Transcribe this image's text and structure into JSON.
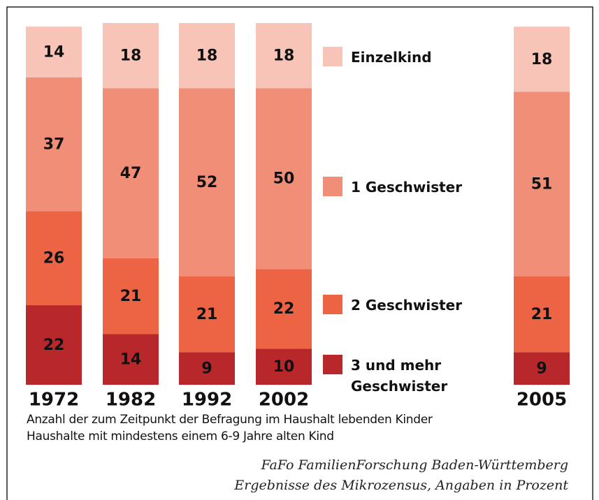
{
  "chart_data": {
    "type": "stacked_bar",
    "categories": [
      "1972",
      "1982",
      "1992",
      "2002",
      "2005"
    ],
    "series": [
      {
        "name": "Einzelkind",
        "color": "#f9c4b8",
        "values": [
          14,
          18,
          18,
          18,
          18
        ]
      },
      {
        "name": "1 Geschwister",
        "color": "#f08e78",
        "values": [
          37,
          47,
          52,
          50,
          51
        ]
      },
      {
        "name": "2 Geschwister",
        "color": "#ed6445",
        "values": [
          26,
          21,
          21,
          22,
          21
        ]
      },
      {
        "name": "3 und mehr Geschwister",
        "color": "#b8282a",
        "values": [
          22,
          14,
          9,
          10,
          9
        ]
      }
    ],
    "notes": [
      "Anzahl der zum Zeitpunkt der Befragung im Haushalt lebenden Kinder",
      "Haushalte mit mindestens einem 6-9 Jahre alten Kind"
    ],
    "source": [
      "FaFo FamilienForschung Baden-Württemberg",
      "Ergebnisse des Mikrozensus, Angaben in Prozent"
    ]
  }
}
